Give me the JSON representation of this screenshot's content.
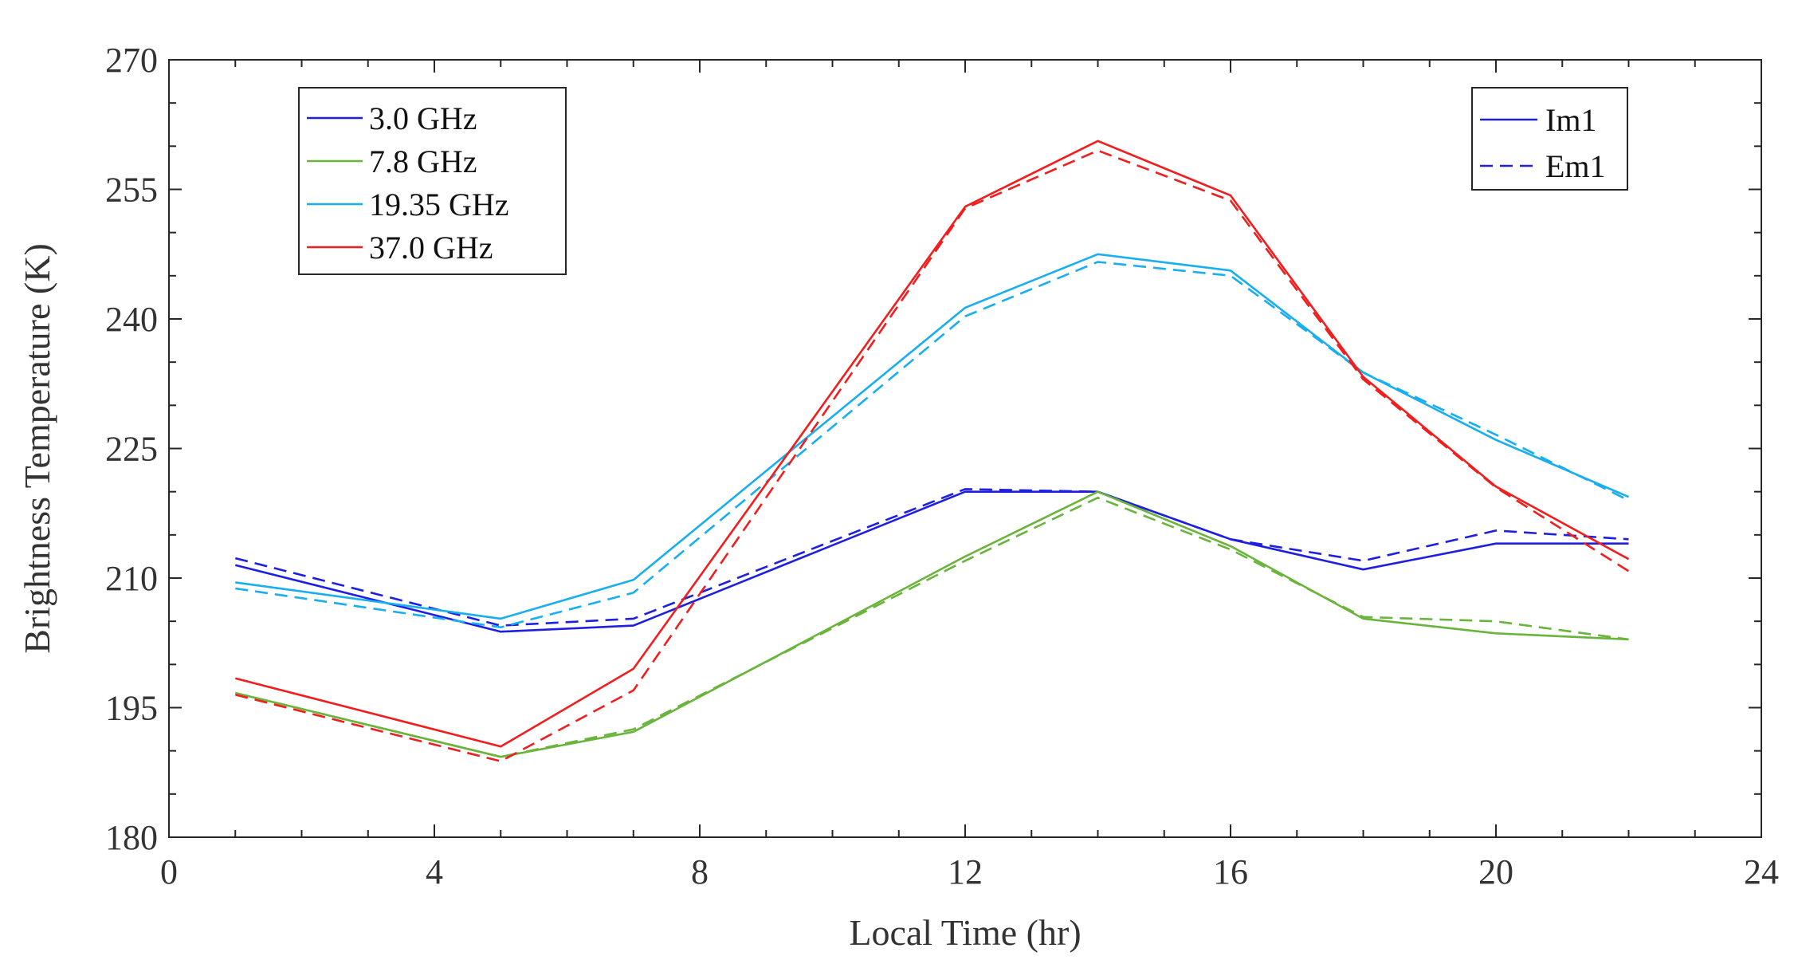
{
  "chart_data": {
    "type": "line",
    "title": "",
    "xlabel": "Local Time (hr)",
    "ylabel": "Brightness Temperature (K)",
    "xlim": [
      0,
      24
    ],
    "ylim": [
      180,
      270
    ],
    "xticks": [
      0,
      4,
      8,
      12,
      16,
      20,
      24
    ],
    "yticks": [
      180,
      195,
      210,
      225,
      240,
      255,
      270
    ],
    "grid": false,
    "x": [
      1,
      5,
      7,
      12,
      14,
      16,
      18,
      20,
      22
    ],
    "frequency_legend": {
      "placement": "top-left",
      "entries": [
        {
          "label": "3.0 GHz",
          "color": "#1f1fe0"
        },
        {
          "label": "7.8 GHz",
          "color": "#6ab43c"
        },
        {
          "label": "19.35 GHz",
          "color": "#18aef0"
        },
        {
          "label": "37.0 GHz",
          "color": "#f01e1e"
        }
      ]
    },
    "model_legend": {
      "placement": "top-right",
      "entries": [
        {
          "label": "Im1",
          "style": "solid",
          "color": "#1f1fe0"
        },
        {
          "label": "Em1",
          "style": "dashed",
          "color": "#1f1fe0"
        }
      ]
    },
    "series": [
      {
        "frequency": "3.0 GHz",
        "model": "Im1",
        "color": "#1f1fe0",
        "dashed": false,
        "values": [
          211.5,
          203.8,
          204.5,
          220.0,
          220.0,
          214.5,
          211.0,
          214.0,
          214.0
        ]
      },
      {
        "frequency": "3.0 GHz",
        "model": "Em1",
        "color": "#1f1fe0",
        "dashed": true,
        "values": [
          212.3,
          204.5,
          205.3,
          220.3,
          220.0,
          214.5,
          212.0,
          215.5,
          214.5
        ]
      },
      {
        "frequency": "7.8 GHz",
        "model": "Im1",
        "color": "#6ab43c",
        "dashed": false,
        "values": [
          196.7,
          189.3,
          192.2,
          212.5,
          220.0,
          213.7,
          205.3,
          203.6,
          202.9
        ]
      },
      {
        "frequency": "7.8 GHz",
        "model": "Em1",
        "color": "#6ab43c",
        "dashed": true,
        "values": [
          196.7,
          189.3,
          192.5,
          212.0,
          219.3,
          213.3,
          205.5,
          205.0,
          202.9
        ]
      },
      {
        "frequency": "19.35 GHz",
        "model": "Im1",
        "color": "#18aef0",
        "dashed": false,
        "values": [
          209.5,
          205.3,
          209.8,
          241.3,
          247.5,
          245.6,
          233.8,
          226.0,
          219.4
        ]
      },
      {
        "frequency": "19.35 GHz",
        "model": "Em1",
        "color": "#18aef0",
        "dashed": true,
        "values": [
          208.8,
          204.3,
          208.3,
          240.3,
          246.6,
          245.0,
          233.8,
          226.6,
          219.0
        ]
      },
      {
        "frequency": "37.0 GHz",
        "model": "Im1",
        "color": "#f01e1e",
        "dashed": false,
        "values": [
          198.4,
          190.5,
          199.5,
          253.0,
          260.6,
          254.3,
          233.3,
          220.6,
          212.2
        ]
      },
      {
        "frequency": "37.0 GHz",
        "model": "Em1",
        "color": "#f01e1e",
        "dashed": true,
        "values": [
          196.5,
          188.8,
          197.0,
          252.8,
          259.5,
          253.7,
          233.0,
          220.5,
          210.8
        ]
      }
    ]
  }
}
